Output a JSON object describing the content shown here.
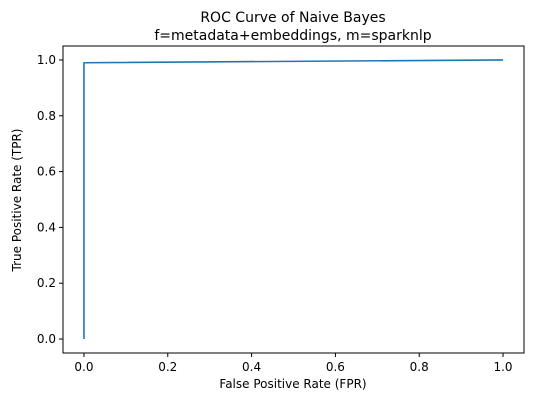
{
  "chart_data": {
    "type": "line",
    "title": "ROC Curve of Naive Bayes",
    "subtitle": "f=metadata+embeddings, m=sparknlp",
    "xlabel": "False Positive Rate (FPR)",
    "ylabel": "True Positive Rate (TPR)",
    "xlim": [
      -0.05,
      1.05
    ],
    "ylim": [
      -0.05,
      1.05
    ],
    "xticks": [
      0.0,
      0.2,
      0.4,
      0.6,
      0.8,
      1.0
    ],
    "yticks": [
      0.0,
      0.2,
      0.4,
      0.6,
      0.8,
      1.0
    ],
    "xtick_labels": [
      "0.0",
      "0.2",
      "0.4",
      "0.6",
      "0.8",
      "1.0"
    ],
    "ytick_labels": [
      "0.0",
      "0.2",
      "0.4",
      "0.6",
      "0.8",
      "1.0"
    ],
    "grid": false,
    "line_color": "#1f77b4",
    "series": [
      {
        "x": [
          0.0,
          0.0,
          1.0
        ],
        "y": [
          0.0,
          0.99,
          1.0
        ]
      }
    ]
  }
}
